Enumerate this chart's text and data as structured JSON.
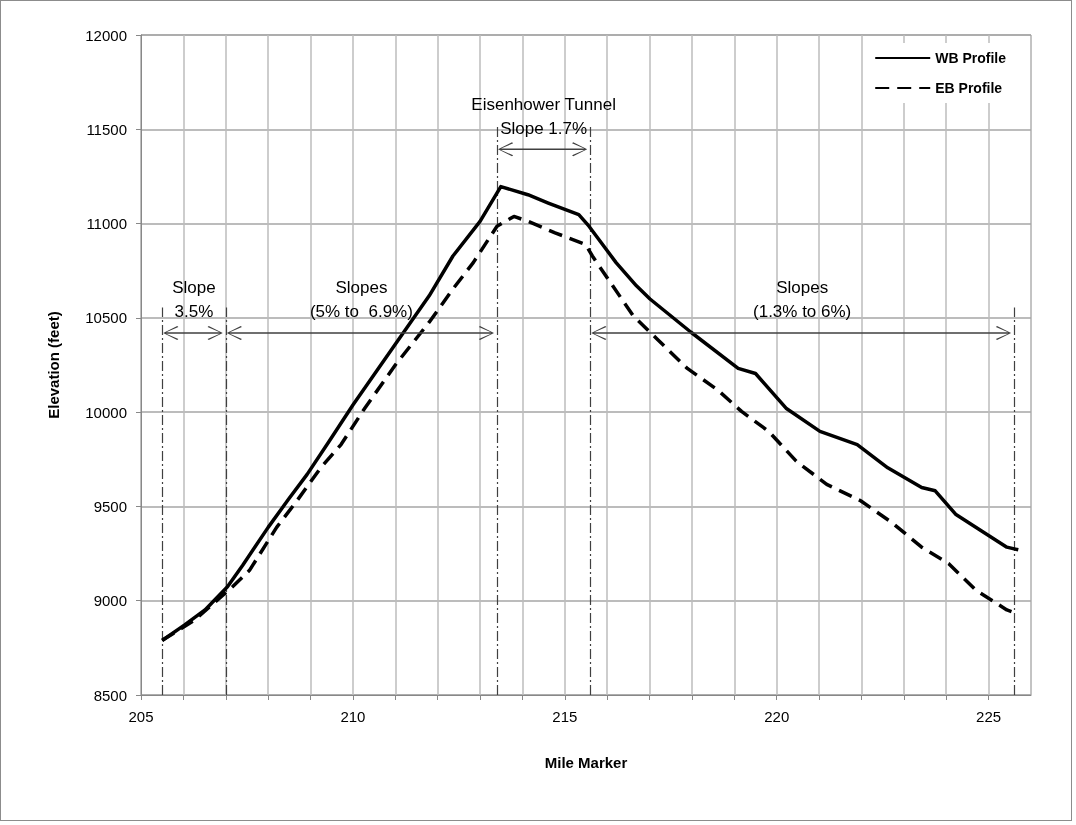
{
  "chart_data": {
    "type": "line",
    "xlabel": "Mile Marker",
    "ylabel": "Elevation (feet)",
    "xlim": [
      205,
      226
    ],
    "xticks": [
      205,
      {
        "value": 206,
        "label": null
      },
      {
        "value": 207,
        "label": null
      },
      {
        "value": 208,
        "label": null
      },
      {
        "value": 209,
        "label": null
      },
      210,
      {
        "value": 211,
        "label": null
      },
      {
        "value": 212,
        "label": null
      },
      {
        "value": 213,
        "label": null
      },
      {
        "value": 214,
        "label": null
      },
      215,
      {
        "value": 216,
        "label": null
      },
      {
        "value": 217,
        "label": null
      },
      {
        "value": 218,
        "label": null
      },
      {
        "value": 219,
        "label": null
      },
      220,
      {
        "value": 221,
        "label": null
      },
      {
        "value": 222,
        "label": null
      },
      {
        "value": 223,
        "label": null
      },
      {
        "value": 224,
        "label": null
      },
      225
    ],
    "ylim": [
      8500,
      12000
    ],
    "yticks": [
      8500,
      9000,
      9500,
      10000,
      10500,
      11000,
      11500,
      12000
    ],
    "grid": true,
    "legend": "top right",
    "marker": "none",
    "series": [
      {
        "name": "WB Profile",
        "color": "#000000",
        "line_style": "solid",
        "x": [
          205.5,
          206.03,
          206.51,
          207.04,
          207.4,
          208.0,
          208.48,
          208.92,
          209.44,
          210.0,
          211.0,
          211.8,
          212.36,
          213.0,
          213.49,
          214.13,
          214.61,
          215.33,
          215.57,
          216.21,
          216.69,
          217.01,
          217.97,
          219.09,
          219.5,
          220.22,
          221.02,
          221.9,
          222.62,
          223.42,
          223.74,
          224.22,
          225.43,
          225.7
        ],
        "values": [
          8789,
          8872,
          8951,
          9074,
          9188,
          9389,
          9538,
          9670,
          9846,
          10038,
          10360,
          10617,
          10828,
          11012,
          11196,
          11153,
          11109,
          11047,
          10986,
          10793,
          10670,
          10600,
          10425,
          10232,
          10205,
          10021,
          9898,
          9828,
          9705,
          9600,
          9583,
          9459,
          9284,
          9270
        ]
      },
      {
        "name": "EB Profile",
        "color": "#000000",
        "line_style": "dashed",
        "x": [
          205.5,
          206.27,
          207.16,
          207.56,
          208.2,
          208.68,
          209.24,
          209.72,
          210.28,
          211.0,
          211.8,
          212.36,
          212.84,
          213.4,
          213.8,
          214.13,
          214.77,
          215.49,
          215.65,
          216.13,
          216.61,
          217.17,
          217.89,
          218.61,
          219.17,
          219.81,
          220.46,
          221.18,
          221.98,
          222.71,
          223.42,
          224.06,
          224.7,
          225.43,
          225.7
        ],
        "values": [
          8790,
          8898,
          9074,
          9161,
          9389,
          9530,
          9705,
          9828,
          10021,
          10250,
          10477,
          10653,
          10793,
          10986,
          11038,
          11012,
          10951,
          10889,
          10828,
          10670,
          10512,
          10389,
          10232,
          10117,
          10004,
          9898,
          9740,
          9617,
          9530,
          9416,
          9284,
          9196,
          9056,
          8951,
          8930
        ]
      }
    ],
    "ref_lines": [
      {
        "axis": "x",
        "value": 205.5,
        "color": "#404040",
        "line_style": "dashdot"
      },
      {
        "axis": "x",
        "value": 207,
        "color": "#404040",
        "line_style": "dashdot"
      },
      {
        "axis": "x",
        "value": 213.4,
        "color": "#404040",
        "line_style": "dashdot"
      },
      {
        "axis": "x",
        "value": 215.6,
        "color": "#404040",
        "line_style": "dashdot"
      },
      {
        "axis": "x",
        "value": 225.6,
        "color": "#404040",
        "line_style": "dashdot"
      }
    ],
    "annotations": [
      "Slope\n3.5%",
      "Slopes\n(5% to  6.9%)",
      "Eisenhower Tunnel\nSlope 1.7%",
      "Slopes\n(1.3% to 6%)"
    ]
  }
}
